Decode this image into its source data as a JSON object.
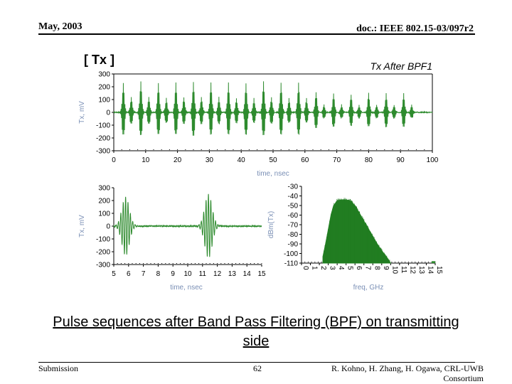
{
  "header": {
    "left": "May, 2003",
    "right": "doc.: IEEE 802.15-03/097r2"
  },
  "tag": "[ Tx ]",
  "caption": "Pulse sequences after Band Pass Filtering (BPF) on transmitting side",
  "footer": {
    "left": "Submission",
    "page": "62",
    "right_line1": "R. Kohno, H. Zhang, H. Ogawa, CRL-UWB",
    "right_line2": "Consortium"
  },
  "colors": {
    "trace": "#2e8b2e",
    "axis": "#000000",
    "label": "#7a8fb5"
  },
  "chart_data": [
    {
      "type": "line",
      "title": "Tx After BPF1",
      "xlabel": "time, nsec",
      "ylabel": "Tx, mV",
      "xlim": [
        0,
        100
      ],
      "ylim": [
        -300,
        300
      ],
      "xticks": [
        "0",
        "10",
        "20",
        "30",
        "40",
        "50",
        "60",
        "70",
        "80",
        "90",
        "100"
      ],
      "yticks": [
        "300",
        "200",
        "100",
        "0",
        "-100",
        "-200",
        "-300"
      ],
      "grid": false,
      "pulses": {
        "t": [
          3,
          5.5,
          8.5,
          11,
          14,
          16.5,
          19.5,
          22,
          25,
          27.5,
          30.5,
          33,
          36,
          38.5,
          41.5,
          44,
          47,
          49.5,
          52.5,
          55,
          58,
          60.5,
          63.5,
          66,
          69,
          71.5,
          74.5,
          77,
          80,
          82.5,
          85.5,
          88,
          91,
          93.5
        ],
        "amp": [
          230,
          120,
          240,
          120,
          230,
          110,
          230,
          120,
          240,
          120,
          230,
          120,
          230,
          110,
          230,
          110,
          240,
          120,
          230,
          110,
          230,
          110,
          160,
          60,
          150,
          60,
          140,
          60,
          150,
          60,
          150,
          60,
          150,
          60
        ]
      }
    },
    {
      "type": "line",
      "xlabel": "time, nsec",
      "ylabel": "Tx, mV",
      "xlim": [
        5,
        15
      ],
      "ylim": [
        -300,
        300
      ],
      "xticks": [
        "5",
        "6",
        "7",
        "8",
        "9",
        "10",
        "11",
        "12",
        "13",
        "14",
        "15"
      ],
      "yticks": [
        "300",
        "200",
        "100",
        "0",
        "-100",
        "-200",
        "-300"
      ],
      "grid": false,
      "pulses": {
        "t": [
          5.8,
          11.4
        ],
        "amp": [
          230,
          250
        ]
      }
    },
    {
      "type": "area",
      "xlabel": "freq, GHz",
      "ylabel": "dBm(Tx)",
      "xlim": [
        0,
        15
      ],
      "ylim": [
        -110,
        -30
      ],
      "xticks": [
        "0",
        "1",
        "2",
        "3",
        "4",
        "5",
        "6",
        "7",
        "8",
        "9",
        "10",
        "11",
        "12",
        "13",
        "14",
        "15"
      ],
      "yticks": [
        "-30",
        "-40",
        "-50",
        "-60",
        "-70",
        "-80",
        "-90",
        "-100",
        "-110"
      ],
      "grid": false,
      "x": [
        2.4,
        2.7,
        3.0,
        3.3,
        3.6,
        4.0,
        4.5,
        5.0,
        5.5,
        6.0,
        6.5,
        7.0,
        7.5,
        8.0,
        8.5,
        9.0,
        9.5,
        9.8,
        10.0
      ],
      "y": [
        -103,
        -90,
        -75,
        -60,
        -50,
        -45,
        -44,
        -44,
        -45,
        -50,
        -58,
        -66,
        -74,
        -82,
        -90,
        -97,
        -103,
        -107,
        -110
      ]
    }
  ]
}
